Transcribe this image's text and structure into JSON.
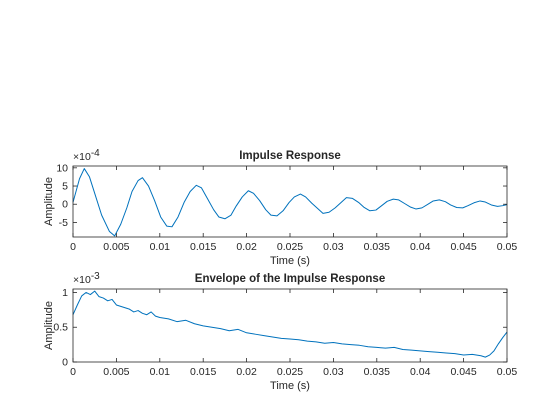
{
  "chart_data": [
    {
      "type": "line",
      "title": "Impulse Response",
      "xlabel": "Time (s)",
      "ylabel": "Amplitude",
      "exponent_label": "10",
      "exponent_power": "-4",
      "xlim": [
        0,
        0.05
      ],
      "ylim": [
        -9,
        10.5
      ],
      "xticks": [
        0,
        0.005,
        0.01,
        0.015,
        0.02,
        0.025,
        0.03,
        0.035,
        0.04,
        0.045,
        0.05
      ],
      "xtick_labels": [
        "0",
        "0.005",
        "0.01",
        "0.015",
        "0.02",
        "0.025",
        "0.03",
        "0.035",
        "0.04",
        "0.045",
        "0.05"
      ],
      "yticks": [
        -5,
        0,
        5,
        10
      ],
      "ytick_labels": [
        "-5",
        "0",
        "5",
        "10"
      ],
      "grid": false,
      "line_color": "#0072BD",
      "series": [
        {
          "x": [
            0,
            0.00075,
            0.0013,
            0.0019,
            0.0025,
            0.0033,
            0.0042,
            0.0048,
            0.0055,
            0.0062,
            0.0068,
            0.0075,
            0.008,
            0.0087,
            0.0094,
            0.0101,
            0.0108,
            0.0114,
            0.0121,
            0.0128,
            0.0135,
            0.0142,
            0.0148,
            0.0155,
            0.0162,
            0.0168,
            0.0175,
            0.0182,
            0.0188,
            0.0195,
            0.0202,
            0.0208,
            0.0215,
            0.0222,
            0.0228,
            0.0235,
            0.0242,
            0.0249,
            0.0255,
            0.0262,
            0.0268,
            0.0275,
            0.0282,
            0.0288,
            0.0295,
            0.0302,
            0.0309,
            0.0315,
            0.0322,
            0.0329,
            0.0335,
            0.0342,
            0.0349,
            0.0355,
            0.0362,
            0.0369,
            0.0375,
            0.0382,
            0.0389,
            0.0395,
            0.0402,
            0.0409,
            0.0415,
            0.0422,
            0.0429,
            0.0435,
            0.0442,
            0.0449,
            0.0455,
            0.0462,
            0.0469,
            0.0475,
            0.0482,
            0.0489,
            0.0495,
            0.05
          ],
          "y": [
            0.5,
            7,
            9.8,
            7.5,
            3,
            -3,
            -7.5,
            -8.7,
            -5.5,
            -1,
            3.5,
            6.5,
            7.3,
            5,
            1,
            -3.5,
            -6,
            -6.2,
            -3.5,
            0.5,
            3.5,
            5.2,
            4.5,
            1.5,
            -1.5,
            -3.5,
            -4,
            -3,
            -0.5,
            2,
            3.7,
            3,
            1,
            -1.5,
            -3,
            -3.2,
            -1.8,
            0.5,
            2,
            2.8,
            2,
            0.3,
            -1.2,
            -2.5,
            -2.2,
            -1,
            0.5,
            1.8,
            1.6,
            0.5,
            -0.8,
            -1.8,
            -1.6,
            -0.5,
            0.8,
            1.4,
            1.2,
            0.2,
            -0.8,
            -1.3,
            -1,
            0,
            0.9,
            1.2,
            0.7,
            -0.2,
            -0.9,
            -1,
            -0.4,
            0.4,
            0.9,
            0.6,
            -0.2,
            -0.6,
            -0.4,
            -0.1
          ]
        }
      ]
    },
    {
      "type": "line",
      "title": "Envelope of the Impulse Response",
      "xlabel": "Time (s)",
      "ylabel": "Amplitude",
      "exponent_label": "10",
      "exponent_power": "-3",
      "xlim": [
        0,
        0.05
      ],
      "ylim": [
        0,
        1.05
      ],
      "xticks": [
        0,
        0.005,
        0.01,
        0.015,
        0.02,
        0.025,
        0.03,
        0.035,
        0.04,
        0.045,
        0.05
      ],
      "xtick_labels": [
        "0",
        "0.005",
        "0.01",
        "0.015",
        "0.02",
        "0.025",
        "0.03",
        "0.035",
        "0.04",
        "0.045",
        "0.05"
      ],
      "yticks": [
        0,
        0.5,
        1
      ],
      "ytick_labels": [
        "0",
        "0.5",
        "1"
      ],
      "grid": false,
      "line_color": "#0072BD",
      "series": [
        {
          "x": [
            0,
            0.0005,
            0.001,
            0.0015,
            0.002,
            0.0025,
            0.003,
            0.0035,
            0.004,
            0.0045,
            0.005,
            0.0055,
            0.006,
            0.0065,
            0.007,
            0.0075,
            0.008,
            0.0085,
            0.009,
            0.0095,
            0.01,
            0.011,
            0.012,
            0.013,
            0.014,
            0.015,
            0.016,
            0.017,
            0.018,
            0.019,
            0.02,
            0.021,
            0.022,
            0.023,
            0.024,
            0.025,
            0.026,
            0.027,
            0.028,
            0.029,
            0.03,
            0.031,
            0.032,
            0.033,
            0.034,
            0.035,
            0.036,
            0.037,
            0.038,
            0.039,
            0.04,
            0.041,
            0.042,
            0.043,
            0.044,
            0.045,
            0.046,
            0.047,
            0.0475,
            0.048,
            0.0485,
            0.049,
            0.0495,
            0.05
          ],
          "y": [
            0.68,
            0.82,
            0.95,
            1.0,
            0.97,
            1.02,
            0.94,
            0.92,
            0.88,
            0.9,
            0.82,
            0.8,
            0.78,
            0.76,
            0.72,
            0.74,
            0.7,
            0.68,
            0.72,
            0.66,
            0.64,
            0.62,
            0.58,
            0.6,
            0.55,
            0.52,
            0.5,
            0.48,
            0.45,
            0.47,
            0.42,
            0.4,
            0.38,
            0.36,
            0.34,
            0.33,
            0.32,
            0.3,
            0.29,
            0.27,
            0.28,
            0.26,
            0.25,
            0.24,
            0.22,
            0.21,
            0.2,
            0.21,
            0.18,
            0.17,
            0.16,
            0.15,
            0.14,
            0.13,
            0.12,
            0.1,
            0.11,
            0.09,
            0.07,
            0.1,
            0.16,
            0.26,
            0.35,
            0.43
          ]
        }
      ]
    }
  ]
}
